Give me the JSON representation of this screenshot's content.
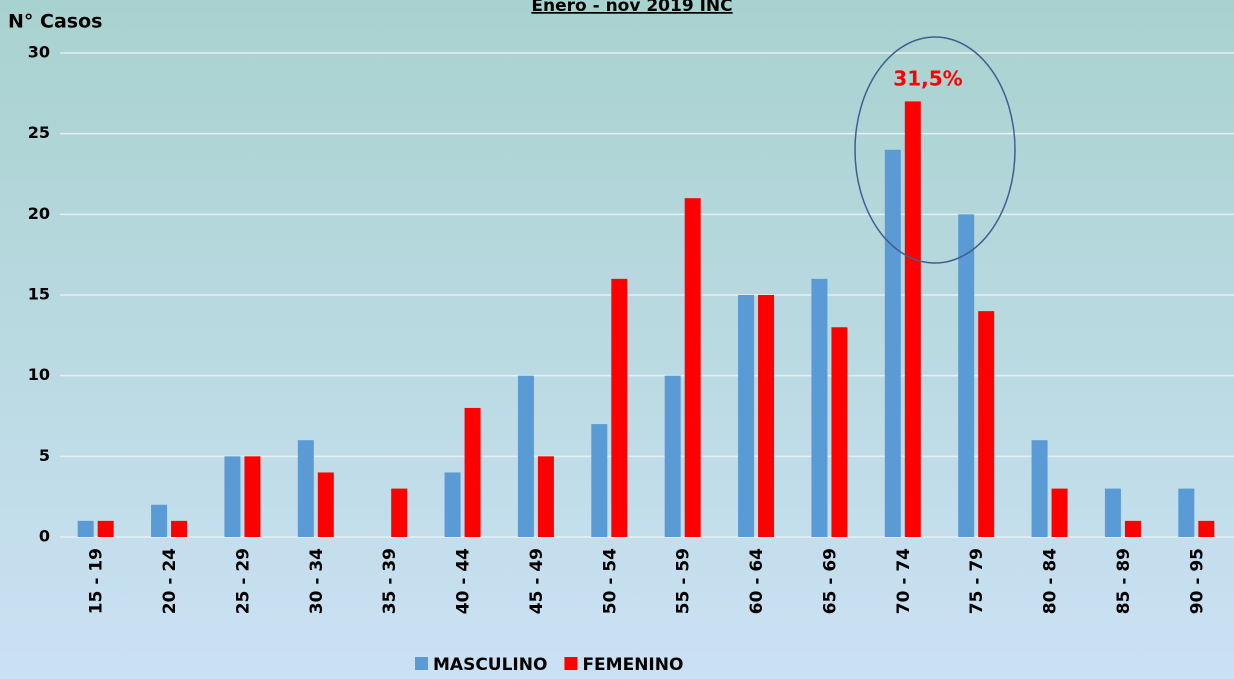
{
  "chart_data": {
    "type": "bar",
    "title": "Enero - nov 2019 INC",
    "y_label": "N° Casos",
    "annotation": "31,5%",
    "categories": [
      "15 - 19",
      "20 - 24",
      "25 - 29",
      "30 - 34",
      "35 - 39",
      "40 - 44",
      "45 - 49",
      "50 - 54",
      "55 - 59",
      "60 - 64",
      "65 - 69",
      "70 - 74",
      "75 - 79",
      "80 - 84",
      "85 - 89",
      "90 - 95"
    ],
    "series": [
      {
        "name": "MASCULINO",
        "color": "#5b9bd5",
        "values": [
          1,
          2,
          5,
          6,
          0,
          4,
          10,
          7,
          10,
          15,
          16,
          24,
          20,
          6,
          3,
          3
        ]
      },
      {
        "name": "FEMENINO",
        "color": "#ff0000",
        "values": [
          1,
          1,
          5,
          4,
          3,
          8,
          5,
          16,
          21,
          15,
          13,
          27,
          14,
          3,
          1,
          1
        ]
      }
    ],
    "ylim": [
      0,
      30
    ],
    "yticks": [
      0,
      5,
      10,
      15,
      20,
      25,
      30
    ],
    "grid": true,
    "legend": "bottom"
  }
}
